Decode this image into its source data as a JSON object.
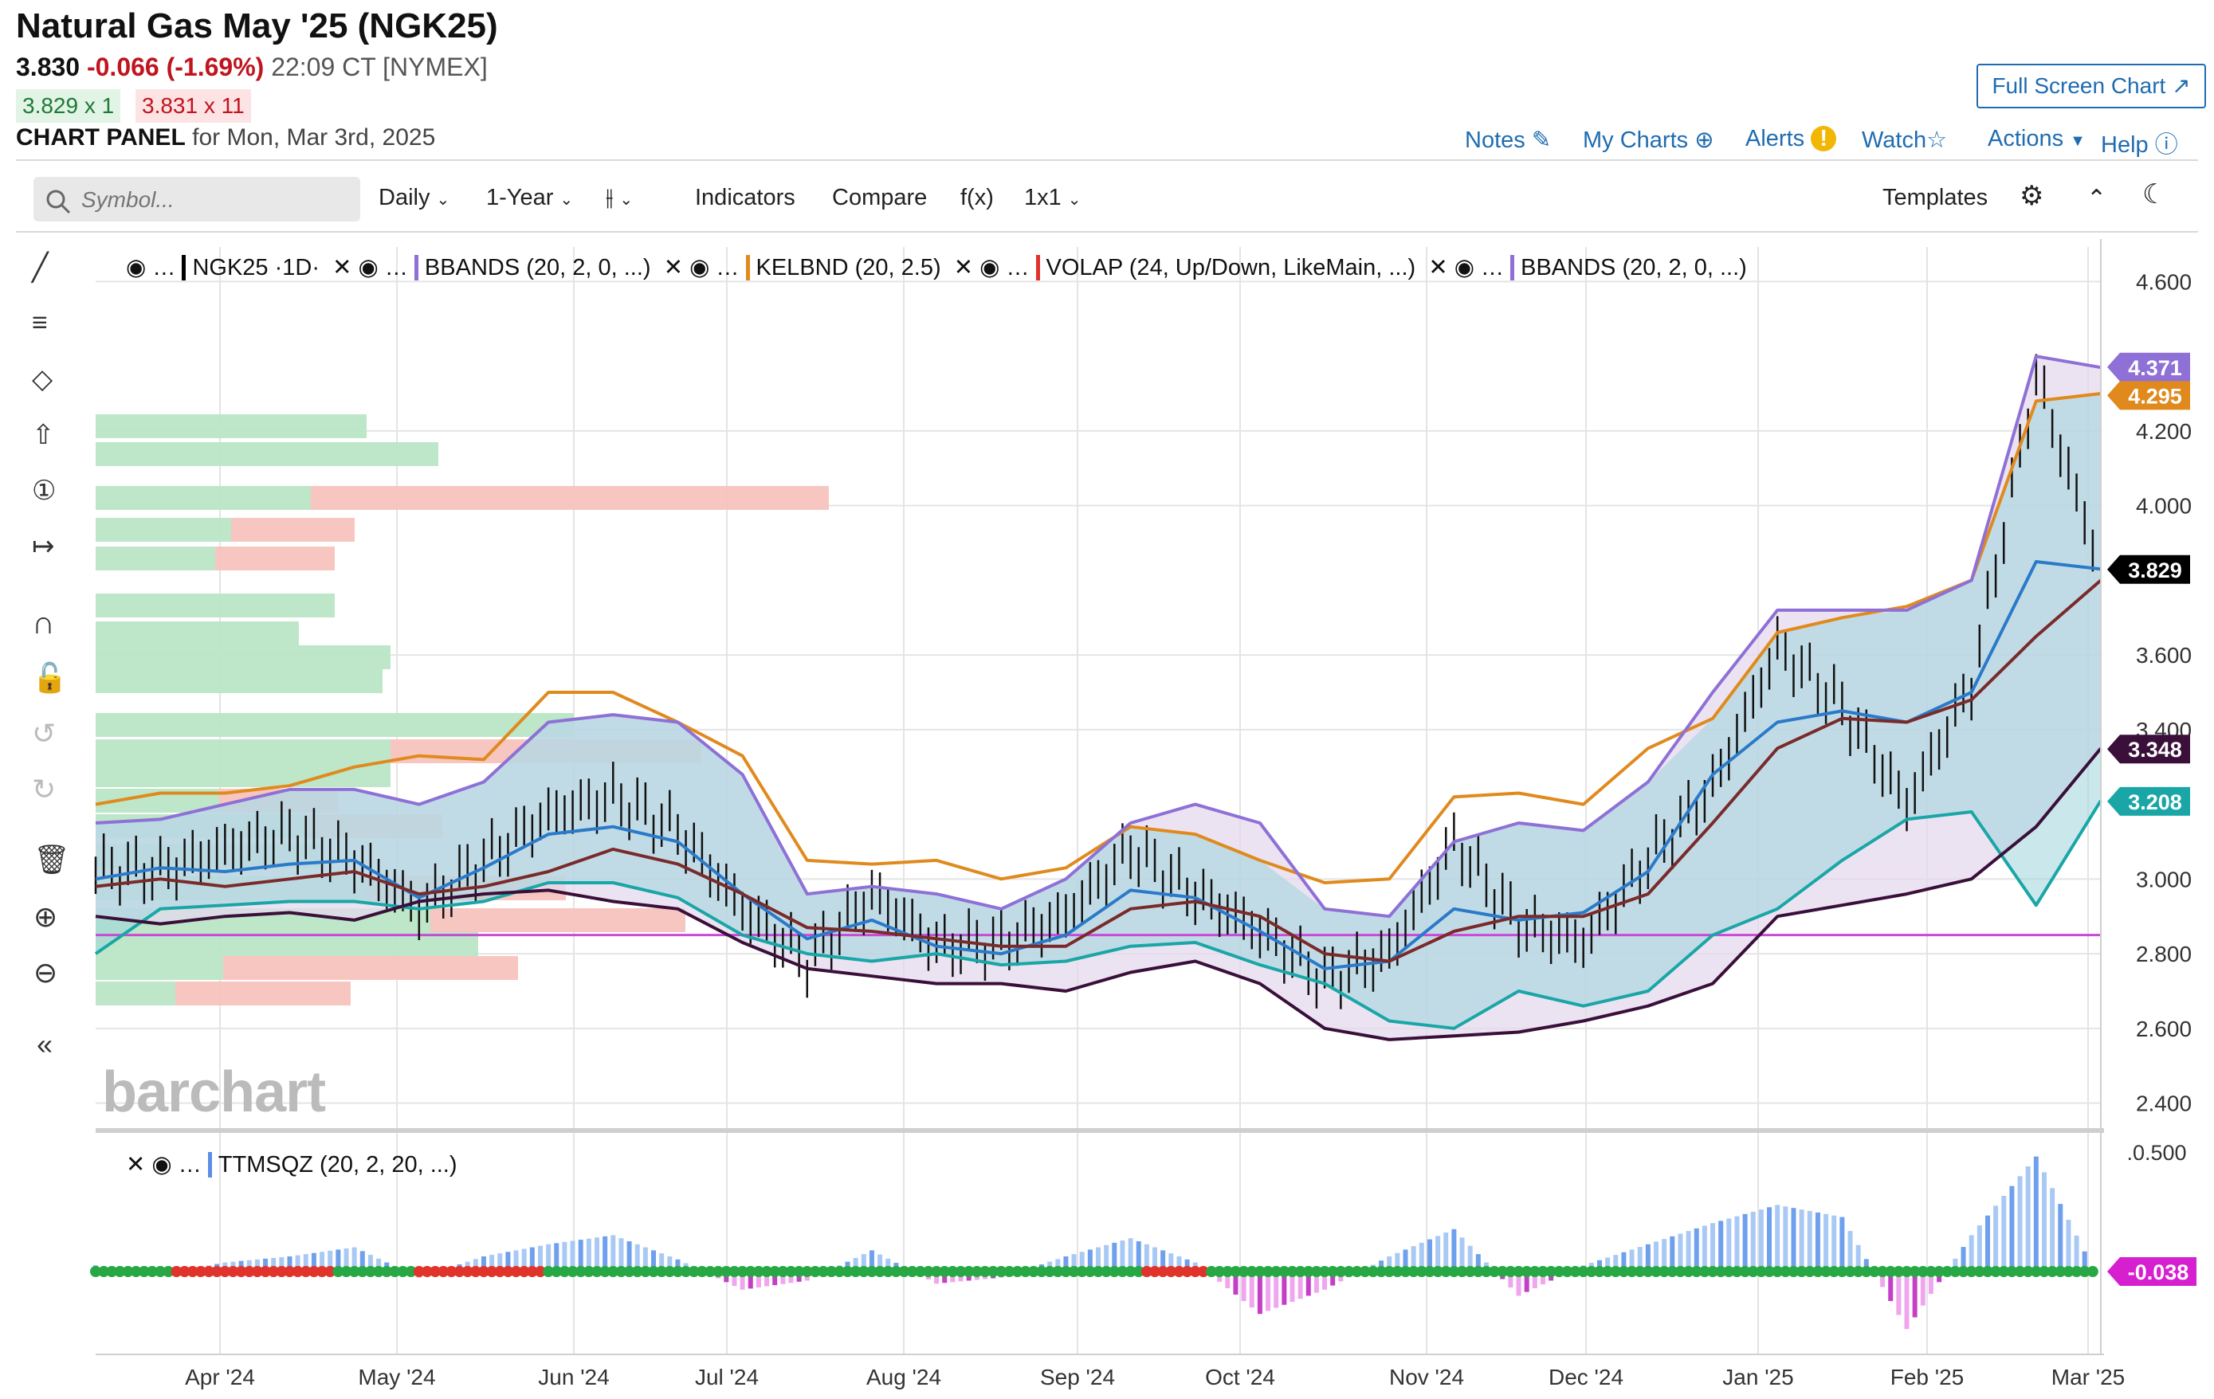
{
  "header": {
    "title": "Natural Gas May '25 (NGK25)",
    "price": "3.830",
    "change": "-0.066 (-1.69%)",
    "time_exchange": "22:09 CT [NYMEX]",
    "bid": "3.829 x 1",
    "ask": "3.831 x 11",
    "panel_label": "CHART PANEL",
    "panel_date": "for Mon, Mar 3rd, 2025",
    "full_screen": "Full Screen Chart"
  },
  "links": {
    "notes": "Notes",
    "my_charts": "My Charts",
    "alerts": "Alerts",
    "watch": "Watch",
    "actions": "Actions",
    "help": "Help"
  },
  "toolbar": {
    "search_placeholder": "Symbol...",
    "interval": "Daily",
    "range": "1-Year",
    "indicators": "Indicators",
    "compare": "Compare",
    "fx": "f(x)",
    "layout": "1x1",
    "templates": "Templates"
  },
  "legend": {
    "symbol": "NGK25",
    "symbol_period": "·1D·",
    "bbands1": "BBANDS (20, 2, 0, ...)",
    "kelbnd": "KELBND (20, 2.5)",
    "volap": "VOLAP (24, Up/Down, LikeMain, ...)",
    "bbands2": "BBANDS (20, 2, 0, ...)",
    "ttm": "TTMSQZ (20, 2, 20, ...)"
  },
  "watermark": "barchart",
  "colors": {
    "up_volume": "#b9e6c5",
    "down_volume": "#f8c3bd",
    "bb_upper": "#8e70d6",
    "keltner": "#e08a1e",
    "middle_blue": "#2a7ac9",
    "sma_brown": "#7a2a2a",
    "bb_lower": "#3a0f3a",
    "kel_lower": "#1aa6a6",
    "vwap": "#c84bd6",
    "squeeze_on": "#e0332b",
    "squeeze_off": "#27a844"
  },
  "chart_data": {
    "type": "line",
    "title": "Natural Gas May '25 (NGK25)",
    "interval": "Daily",
    "x_ticks": [
      "Apr '24",
      "May '24",
      "Jun '24",
      "Jul '24",
      "Aug '24",
      "Sep '24",
      "Oct '24",
      "Nov '24",
      "Dec '24",
      "Jan '25",
      "Feb '25",
      "Mar '25"
    ],
    "y_ticks": [
      "4.600",
      "4.200",
      "4.000",
      "3.600",
      "3.400",
      "3.000",
      "2.800",
      "2.600",
      "2.400"
    ],
    "ylim": [
      2.35,
      4.65
    ],
    "grid": true,
    "price_labels": [
      {
        "name": "BBANDS upper",
        "value": "4.371",
        "color": "#8e70d6"
      },
      {
        "name": "KELBND upper",
        "value": "4.295",
        "color": "#e08a1e"
      },
      {
        "name": "Last",
        "value": "3.829",
        "color": "#000000"
      },
      {
        "name": "BBANDS lower",
        "value": "3.348",
        "color": "#3a0f3a"
      },
      {
        "name": "KELBND lower",
        "value": "3.208",
        "color": "#1aa6a6"
      }
    ],
    "vwap_level": 2.85,
    "series": [
      {
        "name": "KELBND upper",
        "values": [
          3.2,
          3.23,
          3.23,
          3.25,
          3.3,
          3.33,
          3.32,
          3.5,
          3.5,
          3.42,
          3.33,
          3.05,
          3.04,
          3.05,
          3.0,
          3.03,
          3.14,
          3.12,
          3.05,
          2.99,
          3.0,
          3.22,
          3.23,
          3.2,
          3.35,
          3.43,
          3.66,
          3.7,
          3.73,
          3.8,
          4.28,
          4.3
        ]
      },
      {
        "name": "BBANDS upper",
        "values": [
          3.15,
          3.16,
          3.2,
          3.24,
          3.24,
          3.2,
          3.26,
          3.42,
          3.44,
          3.42,
          3.28,
          2.96,
          2.98,
          2.96,
          2.92,
          3.0,
          3.15,
          3.2,
          3.15,
          2.92,
          2.9,
          3.1,
          3.15,
          3.13,
          3.26,
          3.5,
          3.72,
          3.72,
          3.72,
          3.8,
          4.4,
          4.37
        ]
      },
      {
        "name": "BBANDS basis",
        "values": [
          3.0,
          3.03,
          3.02,
          3.04,
          3.05,
          2.95,
          3.03,
          3.12,
          3.14,
          3.1,
          2.96,
          2.84,
          2.89,
          2.82,
          2.8,
          2.85,
          2.97,
          2.95,
          2.86,
          2.76,
          2.78,
          2.92,
          2.89,
          2.91,
          3.02,
          3.28,
          3.42,
          3.45,
          3.42,
          3.5,
          3.85,
          3.83
        ]
      },
      {
        "name": "SMA",
        "values": [
          2.98,
          3.0,
          2.98,
          3.0,
          3.02,
          2.96,
          2.98,
          3.02,
          3.08,
          3.04,
          2.96,
          2.87,
          2.86,
          2.84,
          2.82,
          2.82,
          2.92,
          2.94,
          2.9,
          2.8,
          2.78,
          2.86,
          2.9,
          2.9,
          2.96,
          3.15,
          3.35,
          3.43,
          3.42,
          3.48,
          3.65,
          3.8
        ]
      },
      {
        "name": "KELBND lower",
        "values": [
          2.8,
          2.92,
          2.93,
          2.94,
          2.94,
          2.92,
          2.94,
          2.99,
          2.99,
          2.95,
          2.85,
          2.8,
          2.78,
          2.8,
          2.77,
          2.78,
          2.82,
          2.83,
          2.77,
          2.72,
          2.62,
          2.6,
          2.7,
          2.66,
          2.7,
          2.85,
          2.92,
          3.05,
          3.16,
          3.18,
          2.93,
          3.21
        ]
      },
      {
        "name": "BBANDS lower",
        "values": [
          2.9,
          2.88,
          2.9,
          2.91,
          2.89,
          2.94,
          2.96,
          2.97,
          2.94,
          2.92,
          2.83,
          2.76,
          2.74,
          2.72,
          2.72,
          2.7,
          2.75,
          2.78,
          2.72,
          2.6,
          2.57,
          2.58,
          2.59,
          2.62,
          2.66,
          2.72,
          2.9,
          2.93,
          2.96,
          3.0,
          3.14,
          3.35
        ]
      },
      {
        "name": "NGK25 close",
        "values": [
          3.03,
          3.02,
          3.08,
          3.12,
          3.05,
          2.92,
          3.05,
          3.17,
          3.22,
          3.13,
          2.92,
          2.78,
          2.96,
          2.82,
          2.83,
          2.9,
          3.08,
          2.96,
          2.86,
          2.73,
          2.8,
          3.1,
          2.88,
          2.83,
          3.05,
          3.25,
          3.62,
          3.46,
          3.2,
          3.52,
          4.35,
          3.83
        ]
      }
    ],
    "squeeze_momentum": [
      0.02,
      -0.01,
      0.03,
      0.05,
      0.08,
      -0.02,
      0.05,
      0.09,
      0.12,
      0.04,
      -0.06,
      -0.03,
      0.07,
      -0.04,
      -0.02,
      0.05,
      0.11,
      0.03,
      -0.14,
      -0.06,
      0.05,
      0.14,
      -0.08,
      0.02,
      0.09,
      0.16,
      0.22,
      0.18,
      -0.19,
      0.12,
      0.38,
      -0.038
    ],
    "ttm_label": "-0.038",
    "ttm_axis_top": ".0.500"
  }
}
